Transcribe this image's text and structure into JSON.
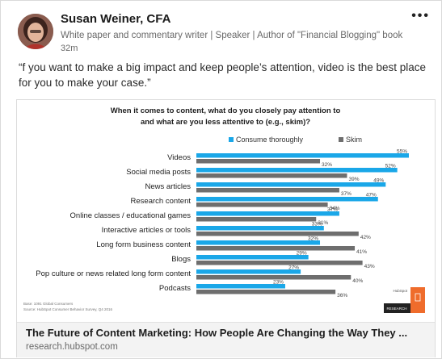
{
  "post": {
    "author": "Susan Weiner, CFA",
    "headline": "White paper and commentary writer | Speaker | Author of \"Financial Blogging\" book",
    "time": "32m",
    "more_icon": "more-horizontal-icon",
    "quote": "“f you want to make a big impact and keep people’s attention, video is the best place for you to make your case.”"
  },
  "card": {
    "title": "The Future of Content Marketing: How People Are Changing the Way They ...",
    "domain": "research.hubspot.com"
  },
  "chart_data": {
    "type": "bar",
    "title_line1": "When it comes to content, what do you closely pay attention to",
    "title_line2": "and what are you less attentive to (e.g., skim)?",
    "categories": [
      "Videos",
      "Social media posts",
      "News articles",
      "Research content",
      "Online classes / educational games",
      "Interactive articles or tools",
      "Long form business content",
      "Blogs",
      "Pop culture or news related long form content",
      "Podcasts"
    ],
    "series": [
      {
        "name": "Consume thoroughly",
        "color": "#1aa7e8",
        "values": [
          55,
          52,
          49,
          47,
          37,
          33,
          32,
          29,
          27,
          23
        ]
      },
      {
        "name": "Skim",
        "color": "#6e6e6e",
        "values": [
          32,
          39,
          37,
          34,
          31,
          42,
          41,
          43,
          40,
          36
        ]
      }
    ],
    "value_suffix": "%",
    "legend_position": "top",
    "xlim": [
      0,
      55
    ],
    "source_line1": "Base: 1091 Global Consumers",
    "source_line2": "Source: HubSpot Consumer Behavior Survey, Q4 2016",
    "brand_text": "HubSpot",
    "badge_text": "RESEARCH"
  }
}
